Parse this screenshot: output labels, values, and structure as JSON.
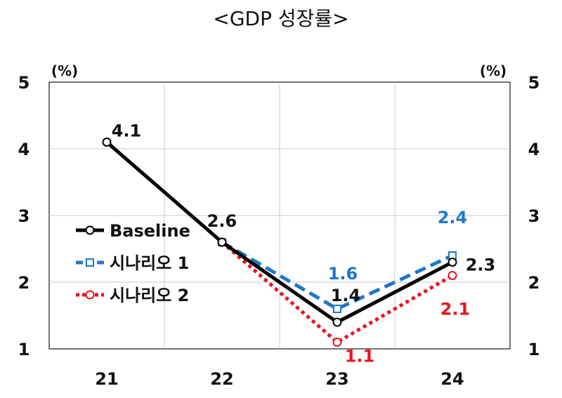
{
  "chart_data": {
    "type": "line",
    "title": "<GDP 성장률>",
    "unit_left": "(%)",
    "unit_right": "(%)",
    "categories": [
      "21",
      "22",
      "23",
      "24"
    ],
    "ylim": [
      1,
      5
    ],
    "yticks": [
      "1",
      "2",
      "3",
      "4",
      "5"
    ],
    "grid": true,
    "legend_position": "left",
    "series": [
      {
        "name": "Baseline",
        "color": "#000000",
        "style": "solid",
        "marker": "circle",
        "values": [
          4.1,
          2.6,
          1.4,
          2.3
        ],
        "labels": [
          "4.1",
          "2.6",
          "1.4",
          "2.3"
        ]
      },
      {
        "name": "시나리오 1",
        "color": "#1f77c9",
        "style": "dashed",
        "marker": "square",
        "values": [
          null,
          2.6,
          1.6,
          2.4
        ],
        "labels": [
          "",
          "",
          "1.6",
          "2.4"
        ]
      },
      {
        "name": "시나리오 2",
        "color": "#e8141e",
        "style": "dotted",
        "marker": "circle",
        "values": [
          null,
          2.6,
          1.1,
          2.1
        ],
        "labels": [
          "",
          "",
          "1.1",
          "2.1"
        ]
      }
    ]
  }
}
